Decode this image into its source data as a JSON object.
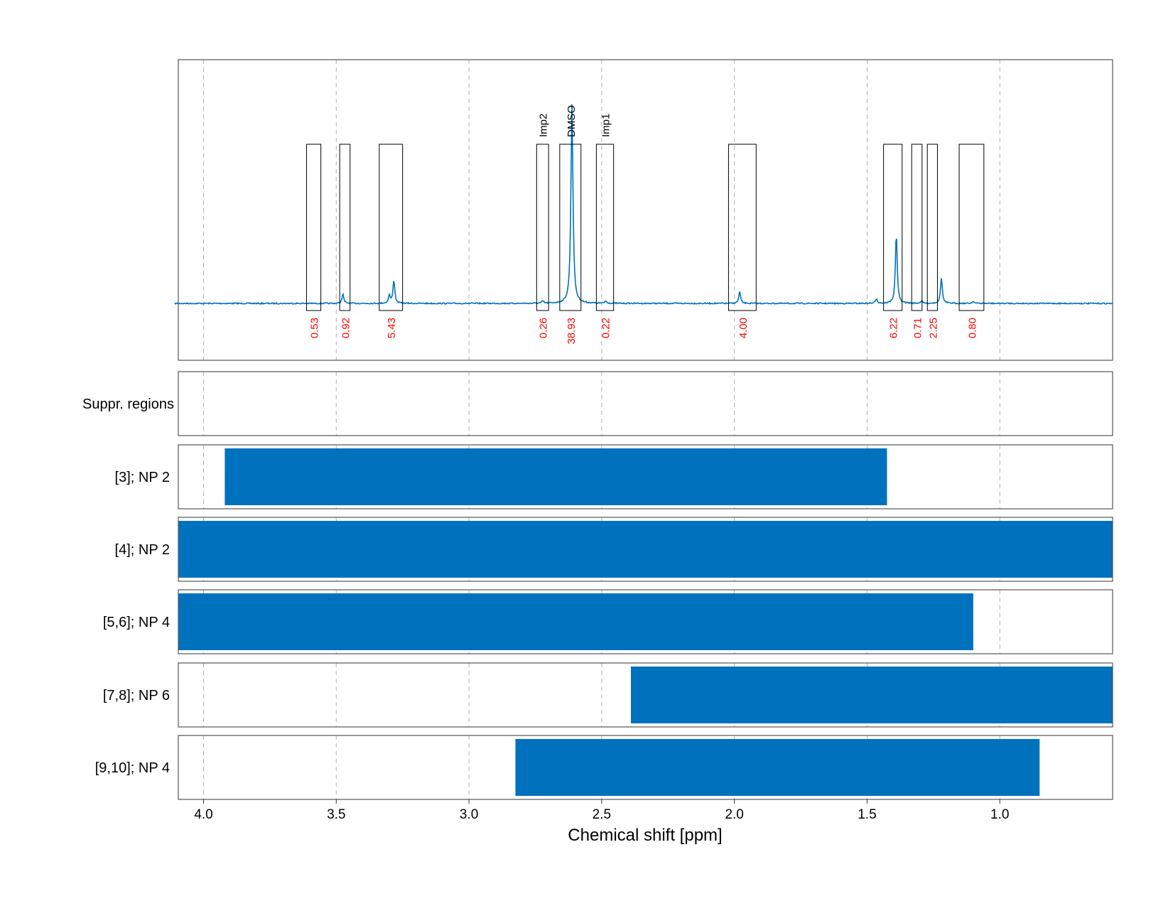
{
  "chart_data": {
    "type": "line",
    "xlabel": "Chemical shift [ppm]",
    "x_reversed": true,
    "xlim": [
      4.095,
      0.575
    ],
    "x_ticks": [
      4.0,
      3.5,
      3.0,
      2.5,
      2.0,
      1.5,
      1.0
    ],
    "x_tick_labels": [
      "4.0",
      "3.5",
      "3.0",
      "2.5",
      "2.0",
      "1.5",
      "1.0"
    ],
    "grid": "vertical dashed at x ticks",
    "spectrum": {
      "color": "#0072bd",
      "peaks": [
        {
          "x": 3.475,
          "height": 0.04
        },
        {
          "x": 3.3,
          "height": 0.035
        },
        {
          "x": 3.283,
          "height": 0.1
        },
        {
          "x": 2.722,
          "height": 0.01
        },
        {
          "x": 2.612,
          "height": 0.85
        },
        {
          "x": 2.485,
          "height": 0.01
        },
        {
          "x": 1.98,
          "height": 0.05
        },
        {
          "x": 1.465,
          "height": 0.02
        },
        {
          "x": 1.39,
          "height": 0.3
        },
        {
          "x": 1.295,
          "height": 0.01
        },
        {
          "x": 1.22,
          "height": 0.11
        },
        {
          "x": 1.1,
          "height": 0.01
        }
      ]
    },
    "integration_regions": [
      {
        "from": 3.612,
        "to": 3.558,
        "value": "0.53",
        "label": ""
      },
      {
        "from": 3.487,
        "to": 3.448,
        "value": "0.92",
        "label": ""
      },
      {
        "from": 3.338,
        "to": 3.25,
        "value": "5.43",
        "label": ""
      },
      {
        "from": 2.745,
        "to": 2.7,
        "value": "0.26",
        "label": "Imp2"
      },
      {
        "from": 2.658,
        "to": 2.578,
        "value": "38.93",
        "label": "DMSO"
      },
      {
        "from": 2.52,
        "to": 2.455,
        "value": "0.22",
        "label": "Imp1"
      },
      {
        "from": 2.022,
        "to": 1.918,
        "value": "4.00",
        "label": ""
      },
      {
        "from": 1.438,
        "to": 1.368,
        "value": "6.22",
        "label": ""
      },
      {
        "from": 1.332,
        "to": 1.293,
        "value": "0.71",
        "label": ""
      },
      {
        "from": 1.273,
        "to": 1.235,
        "value": "2.25",
        "label": ""
      },
      {
        "from": 1.153,
        "to": 1.06,
        "value": "0.80",
        "label": ""
      }
    ],
    "range_panels": [
      {
        "label": "Suppr. regions",
        "ranges": []
      },
      {
        "label": "[3]; NP 2",
        "ranges": [
          [
            3.92,
            1.425
          ]
        ]
      },
      {
        "label": "[4]; NP 2",
        "ranges": [
          [
            4.095,
            0.575
          ]
        ]
      },
      {
        "label": "[5,6]; NP 4",
        "ranges": [
          [
            4.095,
            1.1
          ]
        ]
      },
      {
        "label": "[7,8]; NP 6",
        "ranges": [
          [
            2.39,
            0.575
          ]
        ]
      },
      {
        "label": "[9,10]; NP 4",
        "ranges": [
          [
            2.825,
            0.85
          ]
        ]
      }
    ],
    "bar_color": "#0072bd",
    "label_color_integrals": "#ff0000"
  }
}
